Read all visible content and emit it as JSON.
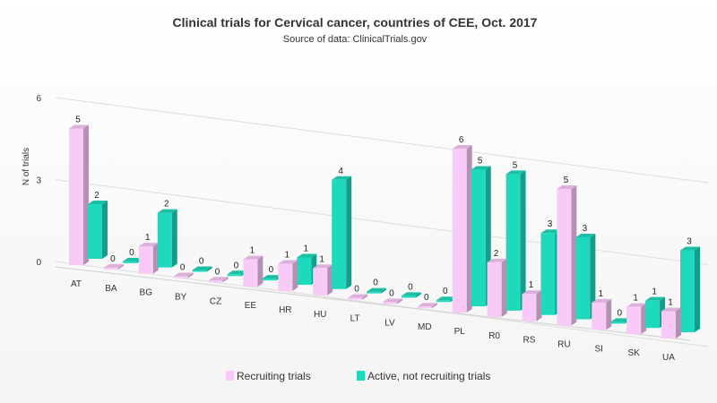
{
  "chart_data": {
    "type": "bar",
    "title": "Clinical trials for Cervical cancer, countries of CEE, Oct. 2017",
    "subtitle": "Source of data: ClinicalTrials.gov",
    "ylabel": "N of trials",
    "xlabel": "",
    "ylim": [
      0,
      6
    ],
    "yticks": [
      0,
      3,
      6
    ],
    "grid": true,
    "legend": "bottom",
    "categories": [
      "AT",
      "BA",
      "BG",
      "BY",
      "CZ",
      "EE",
      "HR",
      "HU",
      "LT",
      "LV",
      "MD",
      "PL",
      "R0",
      "RS",
      "RU",
      "SI",
      "SK",
      "UA"
    ],
    "series": [
      {
        "name": "Recruiting trials",
        "color": "#f9c9f7",
        "values": [
          5,
          0,
          1,
          0,
          0,
          1,
          1,
          1,
          0,
          0,
          0,
          6,
          2,
          1,
          5,
          1,
          1,
          1
        ],
        "labels": [
          "5",
          "0",
          "1",
          "0",
          "0",
          "1",
          "1",
          "1",
          "0",
          "0",
          "0",
          "6",
          "2",
          "1",
          "5",
          "1",
          "1",
          "1"
        ]
      },
      {
        "name": "Active, not recruiting trials",
        "color": "#1fd9bd",
        "values": [
          2,
          0,
          2,
          0,
          0,
          0,
          1,
          4,
          0,
          0,
          0,
          5,
          5,
          3,
          3,
          0,
          1,
          3
        ],
        "labels": [
          "2",
          "0",
          "2",
          "0",
          "0",
          "0",
          "1",
          "4",
          "0",
          "0",
          "0",
          "5",
          "5",
          "3",
          "3",
          "0",
          "1",
          "3"
        ]
      }
    ],
    "highlighted_labels": {
      "category": "UA",
      "color": "#e02020"
    }
  }
}
